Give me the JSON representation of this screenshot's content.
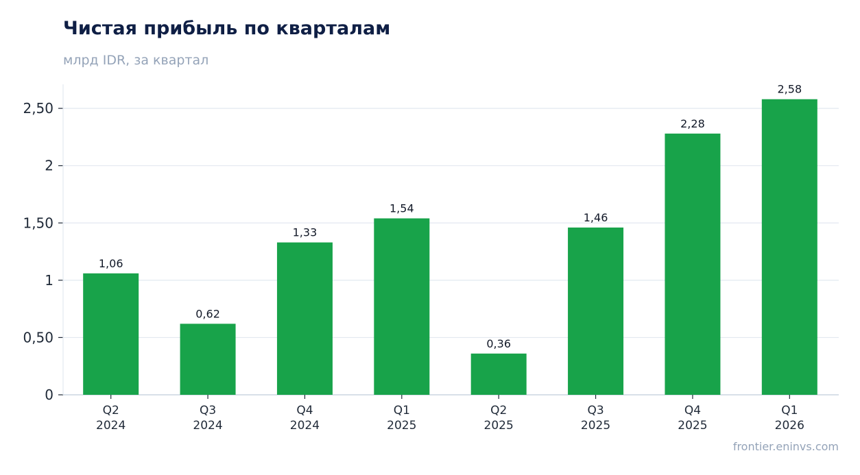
{
  "header": {
    "title": "Чистая прибыль по кварталам",
    "subtitle": "млрд IDR, за квартал"
  },
  "footer": {
    "source": "frontier.eninvs.com"
  },
  "colors": {
    "bar": "#18a34a",
    "grid": "#e2e8f0",
    "axis": "#cbd5e1",
    "title": "#0f1f45",
    "muted": "#94a3b8"
  },
  "chart_data": {
    "type": "bar",
    "title": "Чистая прибыль по кварталам",
    "subtitle": "млрд IDR, за квартал",
    "categories": [
      [
        "Q2",
        "2024"
      ],
      [
        "Q3",
        "2024"
      ],
      [
        "Q4",
        "2024"
      ],
      [
        "Q1",
        "2025"
      ],
      [
        "Q2",
        "2025"
      ],
      [
        "Q3",
        "2025"
      ],
      [
        "Q4",
        "2025"
      ],
      [
        "Q1",
        "2026"
      ]
    ],
    "values": [
      1.06,
      0.62,
      1.33,
      1.54,
      0.36,
      1.46,
      2.28,
      2.58
    ],
    "value_labels": [
      "1,06",
      "0,62",
      "1,33",
      "1,54",
      "0,36",
      "1,46",
      "2,28",
      "2,58"
    ],
    "yticks": [
      0,
      0.5,
      1,
      1.5,
      2,
      2.5
    ],
    "ytick_labels": [
      "0",
      "0,50",
      "1",
      "1,50",
      "2",
      "2,50"
    ],
    "ylim": [
      0,
      2.71
    ],
    "grid": true,
    "legend": "none"
  }
}
